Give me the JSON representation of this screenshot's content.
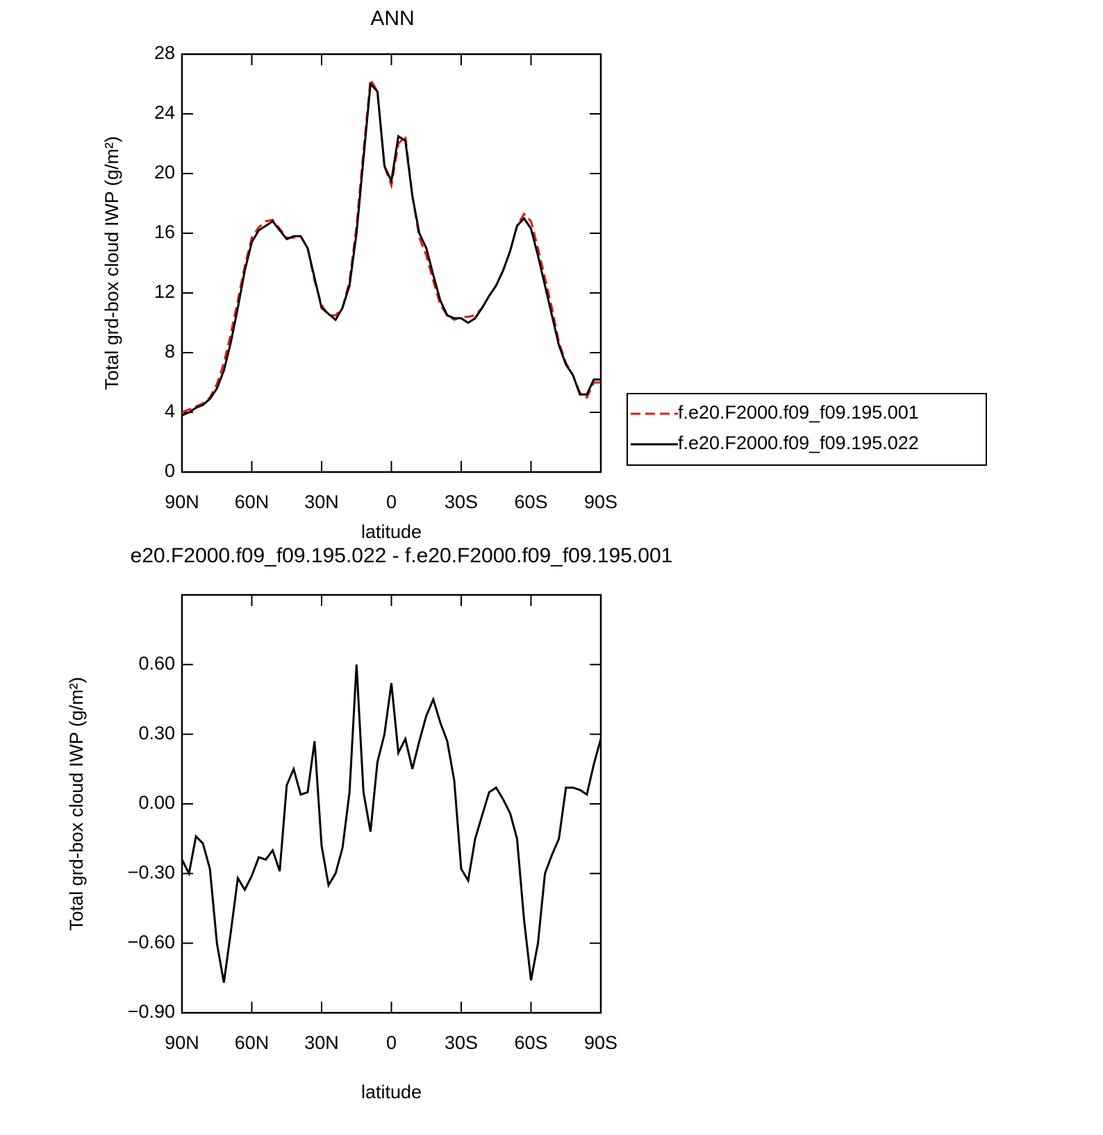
{
  "chart_data": [
    {
      "type": "line",
      "title": "ANN",
      "x_label": "latitude",
      "y_label": "Total grd-box cloud IWP (g/m²)",
      "x": [
        90,
        87,
        84,
        81,
        78,
        75,
        72,
        69,
        66,
        63,
        60,
        57,
        54,
        51,
        48,
        45,
        42,
        39,
        36,
        33,
        30,
        27,
        24,
        21,
        18,
        15,
        12,
        9,
        6,
        3,
        0,
        -3,
        -6,
        -9,
        -12,
        -15,
        -18,
        -21,
        -24,
        -27,
        -30,
        -33,
        -36,
        -39,
        -42,
        -45,
        -48,
        -51,
        -54,
        -57,
        -60,
        -63,
        -66,
        -69,
        -72,
        -75,
        -78,
        -81,
        -84,
        -87,
        -90
      ],
      "series": [
        {
          "name": "f.e20.F2000.f09_f09.195.001",
          "color": "#e41a1c",
          "style": "dashed",
          "values": [
            4.0,
            4.2,
            4.4,
            4.6,
            5.0,
            5.9,
            7.3,
            9.3,
            11.5,
            13.8,
            15.7,
            16.4,
            16.8,
            16.9,
            16.3,
            15.7,
            15.7,
            15.8,
            15.0,
            12.8,
            11.2,
            10.5,
            10.5,
            11.0,
            12.8,
            16.5,
            21.5,
            26.3,
            25.5,
            20.5,
            19.2,
            22.0,
            22.5,
            18.5,
            15.7,
            14.5,
            12.8,
            11.2,
            10.5,
            10.2,
            10.4,
            10.4,
            10.5,
            11.0,
            11.8,
            12.5,
            13.5,
            14.8,
            16.5,
            17.3,
            16.8,
            15.0,
            13.0,
            11.0,
            8.7,
            7.3,
            6.5,
            5.3,
            5.0,
            6.0,
            6.0
          ]
        },
        {
          "name": "f.e20.F2000.f09_f09.195.022",
          "color": "#000000",
          "style": "solid",
          "values": [
            3.8,
            4.0,
            4.3,
            4.5,
            4.9,
            5.6,
            6.8,
            8.7,
            11.0,
            13.5,
            15.4,
            16.2,
            16.5,
            16.8,
            16.2,
            15.6,
            15.8,
            15.8,
            15.0,
            13.0,
            11.0,
            10.6,
            10.2,
            11.0,
            12.5,
            16.0,
            21.0,
            26.0,
            25.5,
            20.5,
            19.5,
            22.5,
            22.2,
            18.5,
            16.0,
            15.0,
            13.2,
            11.5,
            10.5,
            10.3,
            10.3,
            10.0,
            10.3,
            11.0,
            11.8,
            12.5,
            13.5,
            14.8,
            16.5,
            17.0,
            16.3,
            14.5,
            12.5,
            10.5,
            8.5,
            7.2,
            6.5,
            5.2,
            5.2,
            6.2,
            6.2
          ]
        }
      ],
      "xlim": [
        90,
        -90
      ],
      "xticks": [
        {
          "value": 90,
          "label": "90N"
        },
        {
          "value": 60,
          "label": "60N"
        },
        {
          "value": 30,
          "label": "30N"
        },
        0,
        {
          "value": -30,
          "label": "30S"
        },
        {
          "value": -60,
          "label": "60S"
        },
        {
          "value": -90,
          "label": "90S"
        }
      ],
      "ylim": [
        0,
        28
      ],
      "yticks": [
        0,
        4,
        8,
        12,
        16,
        20,
        24,
        28
      ],
      "legend": "right"
    },
    {
      "type": "line",
      "title": "e20.F2000.f09_f09.195.022 - f.e20.F2000.f09_f09.195.001",
      "x_label": "latitude",
      "y_label": "Total grd-box cloud IWP (g/m²)",
      "x": [
        90,
        87,
        84,
        81,
        78,
        75,
        72,
        69,
        66,
        63,
        60,
        57,
        54,
        51,
        48,
        45,
        42,
        39,
        36,
        33,
        30,
        27,
        24,
        21,
        18,
        15,
        12,
        9,
        6,
        3,
        0,
        -3,
        -6,
        -9,
        -12,
        -15,
        -18,
        -21,
        -24,
        -27,
        -30,
        -33,
        -36,
        -39,
        -42,
        -45,
        -48,
        -51,
        -54,
        -57,
        -60,
        -63,
        -66,
        -69,
        -72,
        -75,
        -78,
        -81,
        -84,
        -87,
        -90
      ],
      "color": "#000000",
      "values": [
        -0.24,
        -0.3,
        -0.14,
        -0.17,
        -0.28,
        -0.6,
        -0.77,
        -0.55,
        -0.32,
        -0.37,
        -0.31,
        -0.23,
        -0.24,
        -0.2,
        -0.29,
        0.08,
        0.15,
        0.04,
        0.05,
        0.27,
        -0.18,
        -0.35,
        -0.3,
        -0.19,
        0.05,
        0.6,
        0.05,
        -0.12,
        0.18,
        0.3,
        0.52,
        0.22,
        0.28,
        0.15,
        0.27,
        0.38,
        0.45,
        0.35,
        0.27,
        0.1,
        -0.28,
        -0.33,
        -0.15,
        -0.05,
        0.05,
        0.07,
        0.02,
        -0.04,
        -0.15,
        -0.5,
        -0.76,
        -0.6,
        -0.3,
        -0.22,
        -0.15,
        0.07,
        0.07,
        0.06,
        0.04,
        0.17,
        0.28
      ],
      "xlim": [
        90,
        -90
      ],
      "xticks": [
        {
          "value": 90,
          "label": "90N"
        },
        {
          "value": 60,
          "label": "60N"
        },
        {
          "value": 30,
          "label": "30N"
        },
        0,
        {
          "value": -30,
          "label": "30S"
        },
        {
          "value": -60,
          "label": "60S"
        },
        {
          "value": -90,
          "label": "90S"
        }
      ],
      "ylim": [
        -0.9,
        0.9
      ],
      "yticks": [
        {
          "value": -0.9,
          "label": "−0.90"
        },
        {
          "value": -0.6,
          "label": "−0.60"
        },
        {
          "value": -0.3,
          "label": "−0.30"
        },
        {
          "value": 0,
          "label": "0.00"
        },
        {
          "value": 0.3,
          "label": "0.30"
        },
        {
          "value": 0.6,
          "label": "0.60"
        }
      ]
    }
  ]
}
